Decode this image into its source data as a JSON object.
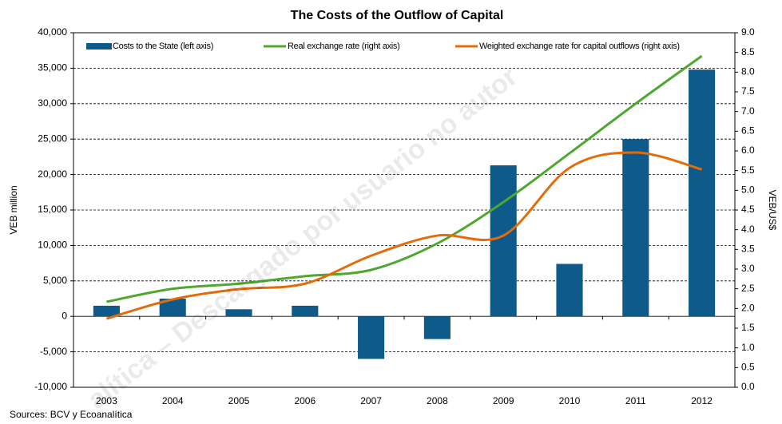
{
  "chart_data": {
    "type": "bar-line",
    "title": "The Costs of the Outflow of Capital",
    "ylabel": "VEB million",
    "y2label": "VEB/US$",
    "source": "Sources: BCV y Ecoanalítica",
    "watermark": "alítica – Descargado por usuario no autor",
    "categories": [
      "2003",
      "2004",
      "2005",
      "2006",
      "2007",
      "2008",
      "2009",
      "2010",
      "2011",
      "2012"
    ],
    "series": [
      {
        "name": "Costs to the State  (left axis)",
        "color": "#0e5a8a",
        "kind": "bar",
        "axis": "y",
        "values": [
          1500,
          2500,
          1000,
          1500,
          -6000,
          -3200,
          21300,
          7400,
          25000,
          34800
        ]
      },
      {
        "name": "Real exchange rate (right axis)",
        "color": "#4ea72e",
        "kind": "line",
        "axis": "y2",
        "values": [
          2.17,
          2.5,
          2.63,
          2.82,
          2.98,
          3.65,
          4.7,
          5.94,
          7.2,
          8.41
        ]
      },
      {
        "name": "Weighted exchange rate for capital outflows  (right axis)",
        "color": "#e36c0a",
        "kind": "line",
        "axis": "y2",
        "values": [
          1.74,
          2.23,
          2.49,
          2.63,
          3.34,
          3.85,
          3.85,
          5.57,
          5.96,
          5.53
        ]
      }
    ],
    "ylim": [
      -10000,
      40000
    ],
    "yticks": [
      {
        "value": -10000,
        "label": "-10,000"
      },
      {
        "value": -5000,
        "label": "-5,000"
      },
      0,
      {
        "value": 5000,
        "label": "5,000"
      },
      {
        "value": 10000,
        "label": "10,000"
      },
      {
        "value": 15000,
        "label": "15,000"
      },
      {
        "value": 20000,
        "label": "20,000"
      },
      {
        "value": 25000,
        "label": "25,000"
      },
      {
        "value": 30000,
        "label": "30,000"
      },
      {
        "value": 35000,
        "label": "35,000"
      },
      {
        "value": 40000,
        "label": "40,000"
      }
    ],
    "y2lim": [
      0,
      9
    ],
    "y2ticks": [
      {
        "value": 0,
        "label": "0.0"
      },
      0.5,
      {
        "value": 1,
        "label": "1.0"
      },
      1.5,
      {
        "value": 2,
        "label": "2.0"
      },
      2.5,
      {
        "value": 3,
        "label": "3.0"
      },
      3.5,
      {
        "value": 4,
        "label": "4.0"
      },
      4.5,
      {
        "value": 5,
        "label": "5.0"
      },
      5.5,
      {
        "value": 6,
        "label": "6.0"
      },
      6.5,
      {
        "value": 7,
        "label": "7.0"
      },
      7.5,
      {
        "value": 8,
        "label": "8.0"
      },
      8.5,
      {
        "value": 9,
        "label": "9.0"
      }
    ],
    "grid": true
  }
}
